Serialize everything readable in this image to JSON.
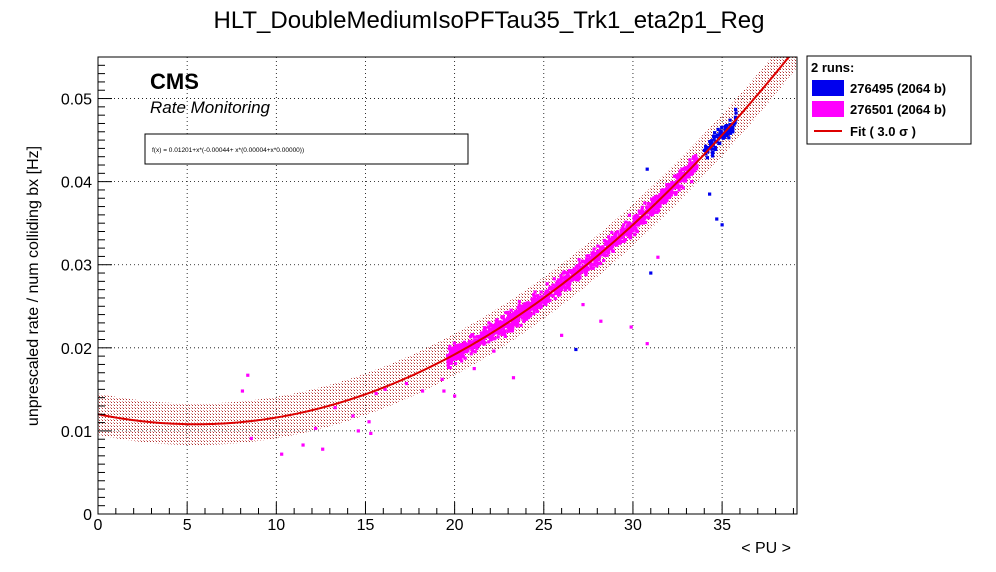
{
  "chart_data": {
    "type": "scatter",
    "title": "HLT_DoubleMediumIsoPFTau35_Trk1_eta2p1_Reg",
    "xlabel": "< PU >",
    "ylabel": "unprescaled rate / num colliding bx [Hz]",
    "xlim": [
      0,
      39.2
    ],
    "ylim": [
      0,
      0.055
    ],
    "xticks": [
      0,
      5,
      10,
      15,
      20,
      25,
      30,
      35
    ],
    "xtick_labels": [
      "0",
      "5",
      "10",
      "15",
      "20",
      "25",
      "30",
      "35"
    ],
    "yticks": [
      0,
      0.01,
      0.02,
      0.03,
      0.04,
      0.05
    ],
    "ytick_labels": [
      "0",
      "0.01",
      "0.02",
      "0.03",
      "0.04",
      "0.05"
    ],
    "grid": true,
    "legend_position": "outside-top-right",
    "legend_header": "2 runs:",
    "annotation_main": "CMS",
    "annotation_sub": "Rate Monitoring",
    "fit_formula_text": "f(x) = 0.01201+x*(-0.00044+ x*(0.00004+x*0.00000))",
    "fit": {
      "name": "Fit ( 3.0 σ )",
      "color": "#dd0000",
      "coefficients": [
        0.01201,
        -0.00044,
        4e-05,
        0.0
      ],
      "band_sigma": 3.0,
      "band_halfwidth": 0.0025,
      "x_range": [
        0,
        39.2
      ]
    },
    "series": [
      {
        "name": "276495 (2064 b)",
        "color": "#0000ee",
        "dense_x_range": [
          34.0,
          35.8
        ],
        "dense_count": 90,
        "outliers": [
          [
            30.8,
            0.0415
          ],
          [
            31.0,
            0.029
          ],
          [
            26.8,
            0.0198
          ],
          [
            34.7,
            0.0355
          ],
          [
            35.0,
            0.0348
          ],
          [
            35.6,
            0.046
          ],
          [
            34.3,
            0.0385
          ]
        ]
      },
      {
        "name": "276501 (2064 b)",
        "color": "#ff00ff",
        "dense_x_range": [
          19.6,
          33.6
        ],
        "dense_count": 1300,
        "outliers": [
          [
            8.1,
            0.0148
          ],
          [
            8.4,
            0.0167
          ],
          [
            8.6,
            0.0091
          ],
          [
            10.3,
            0.0072
          ],
          [
            11.5,
            0.0083
          ],
          [
            12.2,
            0.0103
          ],
          [
            12.6,
            0.0078
          ],
          [
            13.3,
            0.0128
          ],
          [
            14.3,
            0.0118
          ],
          [
            14.6,
            0.01
          ],
          [
            15.2,
            0.0111
          ],
          [
            15.3,
            0.0097
          ],
          [
            15.6,
            0.0145
          ],
          [
            16.1,
            0.015
          ],
          [
            17.3,
            0.0157
          ],
          [
            18.2,
            0.0148
          ],
          [
            19.4,
            0.0148
          ],
          [
            19.3,
            0.0162
          ],
          [
            20.1,
            0.0195
          ],
          [
            21.1,
            0.0175
          ],
          [
            23.3,
            0.0164
          ],
          [
            29.9,
            0.0225
          ],
          [
            30.3,
            0.0357
          ],
          [
            30.8,
            0.0205
          ],
          [
            31.4,
            0.0309
          ],
          [
            27.2,
            0.0252
          ],
          [
            24.0,
            0.0253
          ],
          [
            33.3,
            0.04
          ],
          [
            26.0,
            0.0215
          ],
          [
            28.2,
            0.0232
          ],
          [
            22.2,
            0.0196
          ],
          [
            20.0,
            0.0142
          ],
          [
            32.1,
            0.039
          ]
        ]
      }
    ]
  }
}
